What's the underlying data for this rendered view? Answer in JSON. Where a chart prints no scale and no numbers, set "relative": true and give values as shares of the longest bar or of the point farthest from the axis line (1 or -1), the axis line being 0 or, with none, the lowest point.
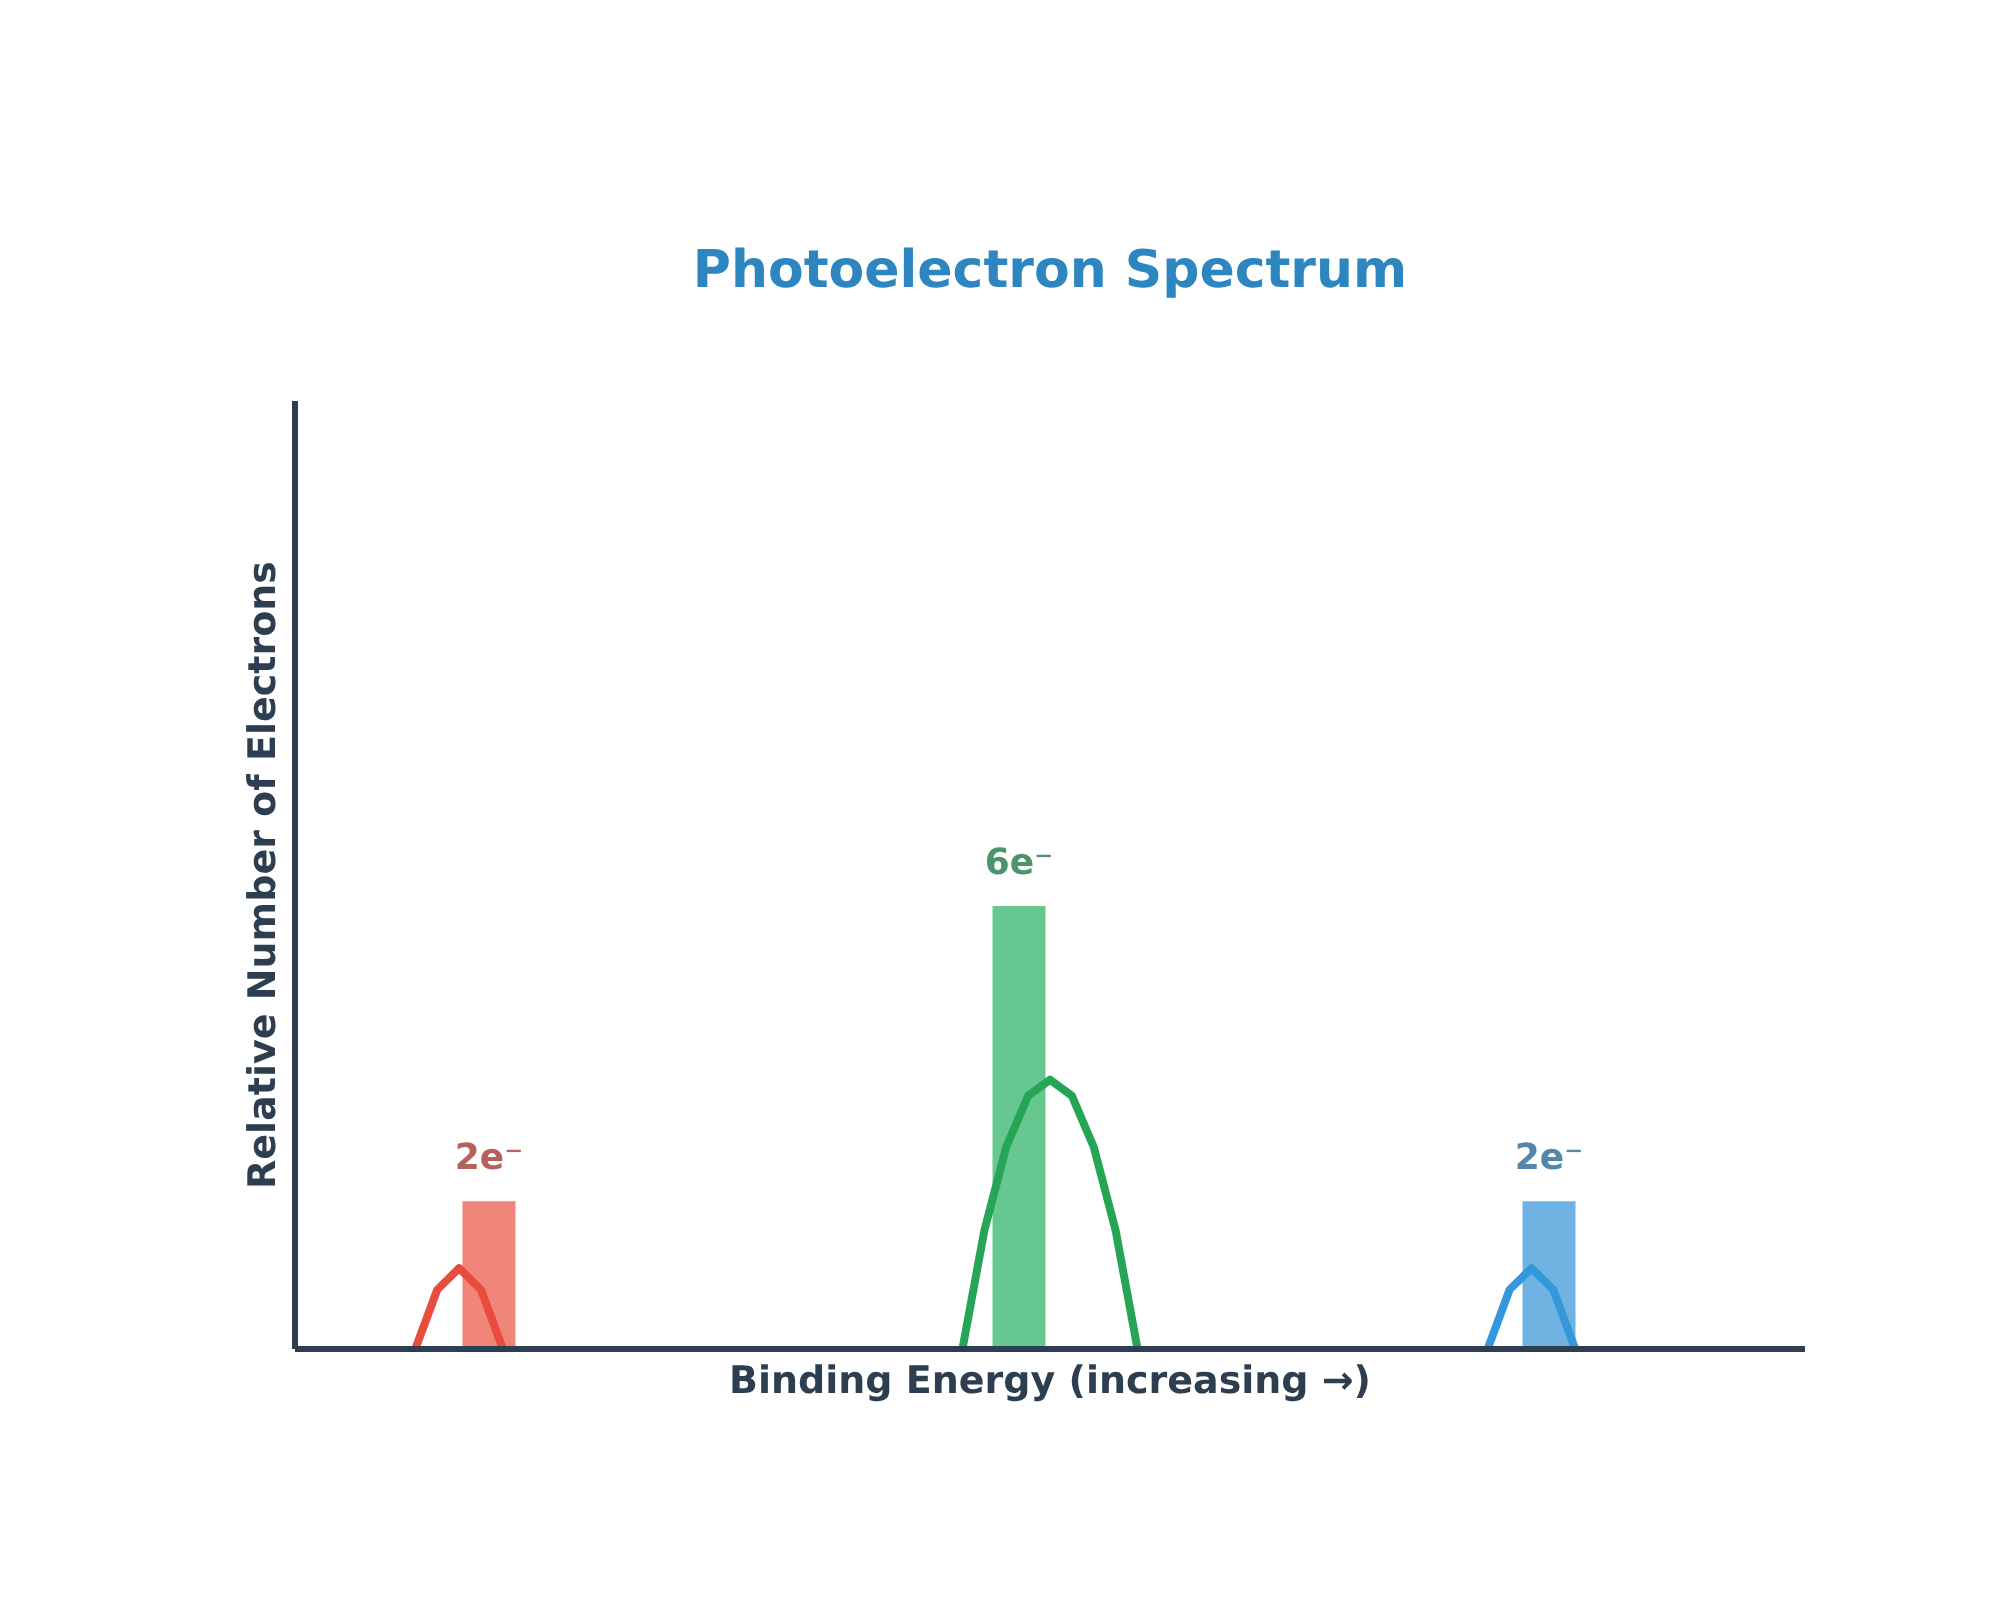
{
  "chart_data": [
    {
      "type": "bar",
      "title": "Photoelectron Spectrum",
      "xlabel": "Binding Energy (increasing →)",
      "ylabel": "Relative Number of Electrons",
      "categories": [
        null,
        null,
        null
      ],
      "values": [
        2,
        6,
        2
      ],
      "colors": [
        "#f0857a",
        "#66c790",
        "#6fb3e2"
      ],
      "value_labels": [
        "2e⁻",
        "6e⁻",
        "2e⁻"
      ]
    },
    {
      "type": "line",
      "relative": true,
      "categories": [
        null,
        null,
        null,
        null,
        null,
        null,
        null,
        null,
        null,
        null,
        null,
        null,
        null,
        null,
        null,
        null,
        null,
        null,
        null,
        null,
        null,
        null,
        null,
        null,
        null,
        null,
        null,
        null,
        null,
        null,
        null,
        null,
        null,
        null,
        null,
        null,
        null,
        null,
        null,
        null,
        null,
        null,
        null,
        null,
        null,
        null,
        null,
        null,
        null,
        null,
        null,
        null,
        null,
        null,
        null,
        null,
        null,
        null,
        null,
        null,
        null,
        null,
        null,
        null,
        null,
        null,
        null,
        null,
        null
      ],
      "series": [
        {
          "color": "#e74c3c",
          "values": [
            null,
            null,
            null,
            null,
            null,
            0,
            0.22,
            0.3,
            0.22,
            0,
            null,
            null,
            null,
            null,
            null,
            null,
            null,
            null,
            null,
            null,
            null,
            null,
            null,
            null,
            null,
            null,
            null,
            null,
            null,
            null,
            null,
            null,
            null,
            null,
            null,
            null,
            null,
            null,
            null,
            null,
            null,
            null,
            null,
            null,
            null,
            null,
            null,
            null,
            null,
            null,
            null,
            null,
            null,
            null,
            null,
            null,
            null,
            null,
            null,
            null,
            null,
            null,
            null,
            null,
            null,
            null,
            null,
            null,
            null
          ]
        },
        {
          "color": "#27a556",
          "values": [
            null,
            null,
            null,
            null,
            null,
            null,
            null,
            null,
            null,
            null,
            null,
            null,
            null,
            null,
            null,
            null,
            null,
            null,
            null,
            null,
            null,
            null,
            null,
            null,
            null,
            null,
            null,
            null,
            null,
            null,
            0,
            0.44,
            0.75,
            0.94,
            1,
            0.94,
            0.75,
            0.44,
            0,
            null,
            null,
            null,
            null,
            null,
            null,
            null,
            null,
            null,
            null,
            null,
            null,
            null,
            null,
            null,
            null,
            null,
            null,
            null,
            null,
            null,
            null,
            null,
            null,
            null,
            null,
            null,
            null,
            null,
            null
          ]
        },
        {
          "color": "#3498db",
          "values": [
            null,
            null,
            null,
            null,
            null,
            null,
            null,
            null,
            null,
            null,
            null,
            null,
            null,
            null,
            null,
            null,
            null,
            null,
            null,
            null,
            null,
            null,
            null,
            null,
            null,
            null,
            null,
            null,
            null,
            null,
            null,
            null,
            null,
            null,
            null,
            null,
            null,
            null,
            null,
            null,
            null,
            null,
            null,
            null,
            null,
            null,
            null,
            null,
            null,
            null,
            null,
            null,
            null,
            null,
            0,
            0.22,
            0.3,
            0.22,
            0,
            null,
            null,
            null,
            null,
            null,
            null,
            null,
            null,
            null,
            null
          ]
        }
      ]
    }
  ]
}
